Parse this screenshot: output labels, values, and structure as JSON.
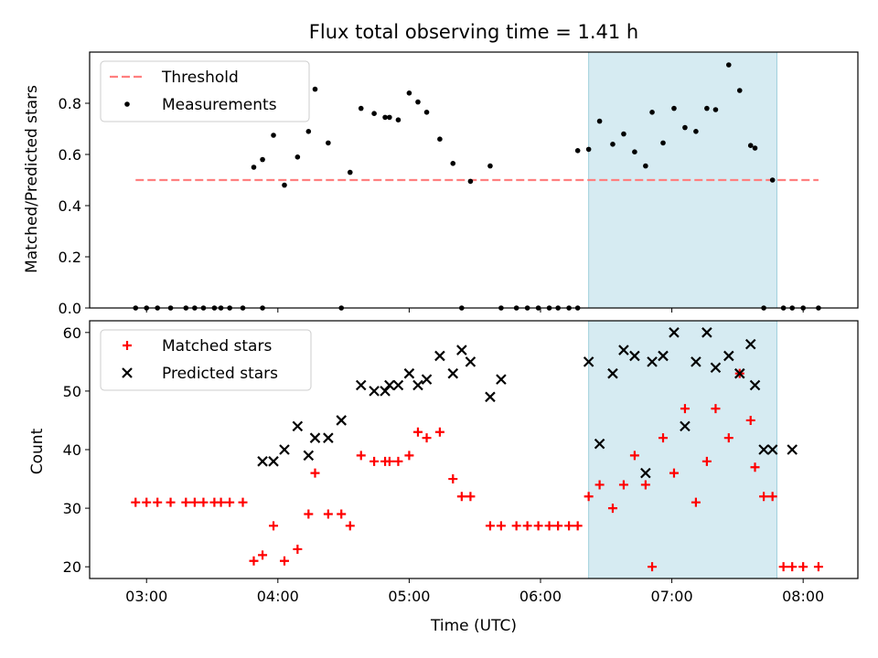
{
  "chart_data": [
    {
      "type": "scatter",
      "title": "Flux total observing time = 1.41 h",
      "xlabel": "",
      "ylabel": "Matched/Predicted stars",
      "ylim": [
        0,
        1.0
      ],
      "yticks": [
        0.0,
        0.2,
        0.4,
        0.6,
        0.8
      ],
      "ytick_labels": [
        "0.0",
        "0.2",
        "0.4",
        "0.6",
        "0.8"
      ],
      "xticks": [
        "03:00",
        "04:00",
        "05:00",
        "06:00",
        "07:00",
        "08:00"
      ],
      "highlight_span": [
        "06:22",
        "07:48"
      ],
      "legend": [
        "Threshold",
        "Measurements"
      ],
      "legend_position": "upper left",
      "threshold": {
        "name": "Threshold",
        "x_range": [
          "02:55",
          "08:07"
        ],
        "y": 0.5,
        "color": "#ff7f7f",
        "style": "dashed"
      },
      "series": [
        {
          "name": "Measurements",
          "marker": "dot",
          "color": "#000000",
          "x": [
            "02:55",
            "03:00",
            "03:05",
            "03:11",
            "03:18",
            "03:22",
            "03:26",
            "03:31",
            "03:34",
            "03:38",
            "03:44",
            "03:49",
            "03:53",
            "03:53",
            "03:58",
            "04:03",
            "04:09",
            "04:14",
            "04:17",
            "04:23",
            "04:29",
            "04:33",
            "04:38",
            "04:44",
            "04:49",
            "04:51",
            "04:55",
            "05:00",
            "05:04",
            "05:08",
            "05:14",
            "05:20",
            "05:24",
            "05:28",
            "05:37",
            "05:42",
            "05:49",
            "05:54",
            "05:59",
            "06:04",
            "06:08",
            "06:13",
            "06:17",
            "06:17",
            "06:22",
            "06:27",
            "06:33",
            "06:38",
            "06:43",
            "06:48",
            "06:51",
            "06:56",
            "07:01",
            "07:06",
            "07:11",
            "07:16",
            "07:20",
            "07:26",
            "07:31",
            "07:36",
            "07:38",
            "07:42",
            "07:46",
            "07:51",
            "07:55",
            "08:00",
            "08:07"
          ],
          "y": [
            0,
            0,
            0,
            0,
            0,
            0,
            0,
            0,
            0,
            0,
            0,
            0.55,
            0.58,
            0,
            0.675,
            0.48,
            0.59,
            0.69,
            0.855,
            0.645,
            0,
            0.53,
            0.78,
            0.76,
            0.745,
            0.745,
            0.735,
            0.84,
            0.805,
            0.765,
            0.66,
            0.565,
            0,
            0.495,
            0.555,
            0,
            0,
            0,
            0,
            0,
            0,
            0,
            0,
            0.615,
            0.62,
            0.73,
            0.64,
            0.68,
            0.61,
            0.555,
            0.765,
            0.645,
            0.78,
            0.705,
            0.69,
            0.78,
            0.775,
            0.95,
            0.85,
            0.635,
            0.625,
            0,
            0.5,
            0,
            0,
            0,
            0
          ]
        }
      ]
    },
    {
      "type": "scatter",
      "title": "",
      "xlabel": "Time (UTC)",
      "ylabel": "Count",
      "ylim": [
        18,
        62
      ],
      "yticks": [
        20,
        30,
        40,
        50,
        60
      ],
      "ytick_labels": [
        "20",
        "30",
        "40",
        "50",
        "60"
      ],
      "xticks": [
        "03:00",
        "04:00",
        "05:00",
        "06:00",
        "07:00",
        "08:00"
      ],
      "highlight_span": [
        "06:22",
        "07:48"
      ],
      "legend": [
        "Matched stars",
        "Predicted stars"
      ],
      "legend_position": "upper left",
      "series": [
        {
          "name": "Matched stars",
          "marker": "plus",
          "color": "#ff0000",
          "x": [
            "02:55",
            "03:00",
            "03:05",
            "03:11",
            "03:18",
            "03:22",
            "03:26",
            "03:31",
            "03:34",
            "03:38",
            "03:44",
            "03:49",
            "03:53",
            "03:58",
            "04:03",
            "04:09",
            "04:14",
            "04:17",
            "04:23",
            "04:29",
            "04:33",
            "04:38",
            "04:44",
            "04:49",
            "04:51",
            "04:55",
            "05:00",
            "05:04",
            "05:08",
            "05:14",
            "05:20",
            "05:24",
            "05:28",
            "05:37",
            "05:42",
            "05:49",
            "05:54",
            "05:59",
            "06:04",
            "06:08",
            "06:13",
            "06:17",
            "06:22",
            "06:27",
            "06:33",
            "06:38",
            "06:43",
            "06:48",
            "06:51",
            "06:56",
            "07:01",
            "07:06",
            "07:11",
            "07:16",
            "07:20",
            "07:26",
            "07:31",
            "07:36",
            "07:38",
            "07:42",
            "07:46",
            "07:51",
            "07:55",
            "08:00",
            "08:07"
          ],
          "y": [
            31,
            31,
            31,
            31,
            31,
            31,
            31,
            31,
            31,
            31,
            31,
            21,
            22,
            27,
            21,
            23,
            29,
            36,
            29,
            29,
            27,
            39,
            38,
            38,
            38,
            38,
            39,
            43,
            42,
            43,
            35,
            32,
            32,
            27,
            27,
            27,
            27,
            27,
            27,
            27,
            27,
            27,
            32,
            34,
            30,
            34,
            39,
            34,
            20,
            42,
            36,
            47,
            31,
            38,
            47,
            42,
            53,
            45,
            37,
            32,
            32,
            20,
            20,
            20,
            20
          ]
        },
        {
          "name": "Predicted stars",
          "marker": "x",
          "color": "#000000",
          "x": [
            "03:53",
            "03:58",
            "04:03",
            "04:09",
            "04:14",
            "04:17",
            "04:23",
            "04:29",
            "04:38",
            "04:44",
            "04:49",
            "04:51",
            "04:55",
            "05:00",
            "05:04",
            "05:08",
            "05:14",
            "05:20",
            "05:24",
            "05:28",
            "05:37",
            "05:42",
            "06:22",
            "06:27",
            "06:33",
            "06:38",
            "06:43",
            "06:48",
            "06:51",
            "06:56",
            "07:01",
            "07:06",
            "07:11",
            "07:16",
            "07:20",
            "07:26",
            "07:31",
            "07:36",
            "07:38",
            "07:42",
            "07:46",
            "07:55"
          ],
          "y": [
            38,
            38,
            40,
            44,
            39,
            42,
            42,
            45,
            51,
            50,
            50,
            51,
            51,
            53,
            51,
            52,
            56,
            53,
            57,
            55,
            49,
            52,
            55,
            41,
            53,
            57,
            56,
            36,
            55,
            56,
            60,
            44,
            55,
            60,
            54,
            56,
            53,
            58,
            51,
            40,
            40,
            40
          ]
        }
      ]
    }
  ]
}
